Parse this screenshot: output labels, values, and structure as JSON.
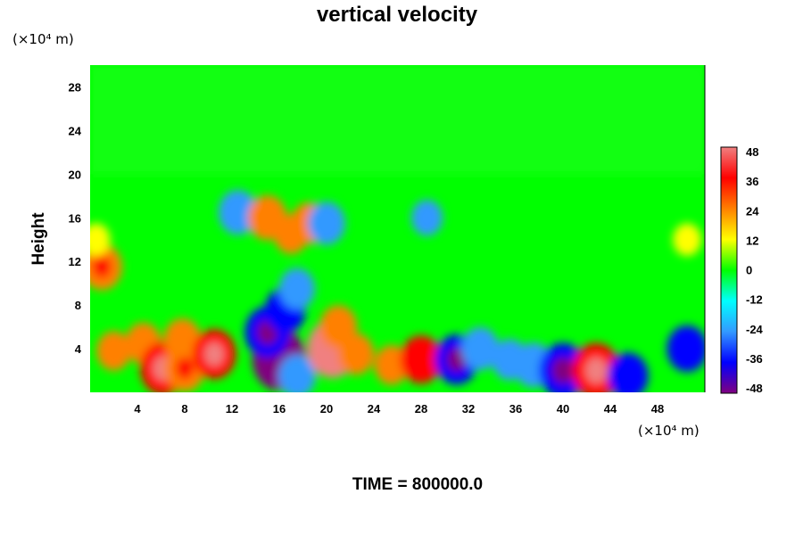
{
  "chart_data": {
    "type": "heatmap",
    "title": "vertical velocity",
    "ylabel": "Height",
    "xlabel": "",
    "x_unit": "(×10⁴ m)",
    "y_unit": "(×10⁴ m)",
    "xlim": [
      0,
      52
    ],
    "ylim": [
      0,
      30
    ],
    "xticks": [
      "4",
      "8",
      "12",
      "16",
      "20",
      "24",
      "28",
      "32",
      "36",
      "40",
      "44",
      "48"
    ],
    "yticks": [
      "4",
      "8",
      "12",
      "16",
      "20",
      "24",
      "28"
    ],
    "colorbar": {
      "range": [
        -48,
        48
      ],
      "ticks": [
        "48",
        "36",
        "24",
        "12",
        "0",
        "-12",
        "-24",
        "-36",
        "-48"
      ],
      "colors": [
        "#f08080",
        "#ff0000",
        "#ff8000",
        "#ffff00",
        "#00ff00",
        "#00ffff",
        "#3399ff",
        "#0000ff",
        "#800080"
      ]
    },
    "background_value": 0,
    "features": [
      {
        "x": 2.0,
        "y": 3.8,
        "value": 22
      },
      {
        "x": 4.5,
        "y": 4.5,
        "value": 24
      },
      {
        "x": 6.2,
        "y": 2.2,
        "value": 38
      },
      {
        "x": 7.8,
        "y": 4.8,
        "value": 26
      },
      {
        "x": 8.0,
        "y": 2.2,
        "value": 30
      },
      {
        "x": 10.5,
        "y": 3.5,
        "value": 34
      },
      {
        "x": 1.0,
        "y": 11.5,
        "value": 30
      },
      {
        "x": 16.0,
        "y": 3.0,
        "value": -48
      },
      {
        "x": 15.0,
        "y": 5.5,
        "value": -36
      },
      {
        "x": 16.5,
        "y": 7.5,
        "value": -30
      },
      {
        "x": 17.5,
        "y": 1.5,
        "value": -26
      },
      {
        "x": 20.5,
        "y": 4.0,
        "value": 44
      },
      {
        "x": 21.0,
        "y": 6.0,
        "value": 26
      },
      {
        "x": 22.5,
        "y": 3.5,
        "value": 24
      },
      {
        "x": 25.5,
        "y": 2.5,
        "value": 22
      },
      {
        "x": 28.0,
        "y": 3.0,
        "value": 32
      },
      {
        "x": 31.0,
        "y": 3.0,
        "value": -34
      },
      {
        "x": 33.0,
        "y": 4.0,
        "value": -26
      },
      {
        "x": 35.5,
        "y": 3.0,
        "value": -24
      },
      {
        "x": 37.5,
        "y": 2.5,
        "value": -28
      },
      {
        "x": 40.0,
        "y": 2.0,
        "value": -40
      },
      {
        "x": 42.8,
        "y": 2.0,
        "value": 40
      },
      {
        "x": 45.5,
        "y": 1.5,
        "value": -30
      },
      {
        "x": 50.5,
        "y": 4.0,
        "value": -30
      },
      {
        "x": 12.5,
        "y": 16.5,
        "value": -28
      },
      {
        "x": 15.0,
        "y": 16.0,
        "value": 28
      },
      {
        "x": 17.0,
        "y": 14.5,
        "value": 22
      },
      {
        "x": 18.5,
        "y": 15.5,
        "value": 24
      },
      {
        "x": 17.5,
        "y": 9.5,
        "value": -24
      },
      {
        "x": 20.0,
        "y": 15.5,
        "value": -26
      },
      {
        "x": 28.5,
        "y": 16.0,
        "value": -18
      },
      {
        "x": 50.5,
        "y": 14.0,
        "value": 14
      },
      {
        "x": 0.5,
        "y": 14.0,
        "value": 14
      }
    ]
  },
  "footer": {
    "time_text": "TIME = 800000.0"
  }
}
